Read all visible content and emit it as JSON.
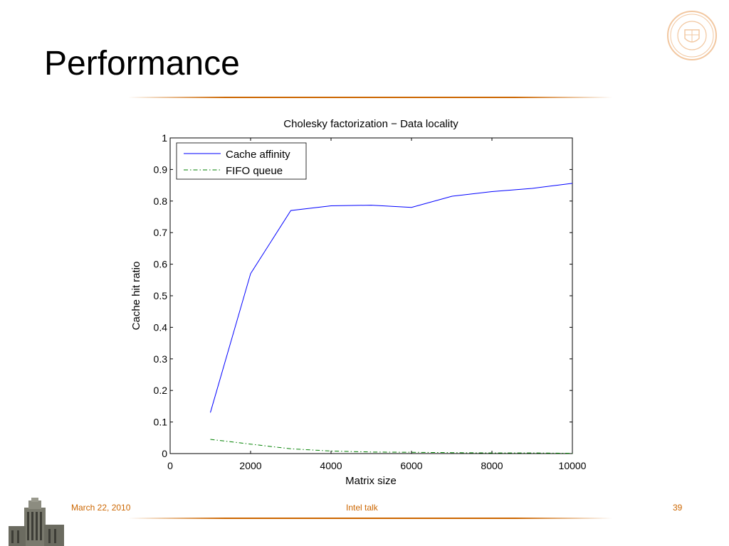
{
  "slide": {
    "title": "Performance",
    "footer": {
      "date": "March 22, 2010",
      "event": "Intel talk",
      "page": "39"
    },
    "accent_color": "#cc6600"
  },
  "chart_data": {
    "type": "line",
    "title": "Cholesky factorization − Data locality",
    "xlabel": "Matrix size",
    "ylabel": "Cache hit ratio",
    "xlim": [
      0,
      10000
    ],
    "ylim": [
      0,
      1
    ],
    "xticks": [
      0,
      2000,
      4000,
      6000,
      8000,
      10000
    ],
    "yticks": [
      0,
      0.1,
      0.2,
      0.3,
      0.4,
      0.5,
      0.6,
      0.7,
      0.8,
      0.9,
      1
    ],
    "ytick_labels": [
      "0",
      "0.1",
      "0.2",
      "0.3",
      "0.4",
      "0.5",
      "0.6",
      "0.7",
      "0.8",
      "0.9",
      "1"
    ],
    "grid": false,
    "legend": "top-left",
    "x": [
      1000,
      2000,
      3000,
      4000,
      5000,
      6000,
      7000,
      8000,
      9000,
      10000
    ],
    "series": [
      {
        "name": "Cache affinity",
        "color": "#0000ff",
        "style": "solid",
        "values": [
          0.13,
          0.57,
          0.77,
          0.785,
          0.787,
          0.78,
          0.815,
          0.83,
          0.84,
          0.856
        ]
      },
      {
        "name": "FIFO queue",
        "color": "#008000",
        "style": "dashdot",
        "values": [
          0.045,
          0.03,
          0.015,
          0.008,
          0.005,
          0.004,
          0.003,
          0.002,
          0.002,
          0.001
        ]
      }
    ]
  }
}
